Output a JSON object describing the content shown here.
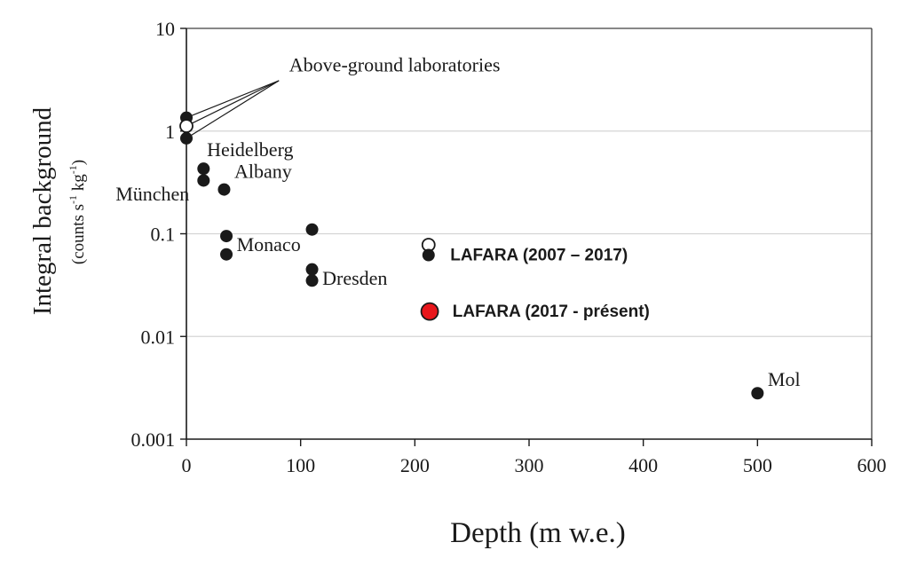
{
  "chart_data": {
    "type": "scatter",
    "xlabel": "Depth (m w.e.)",
    "ylabel": "Integral background",
    "ylabel_units_prefix": "(counts s",
    "ylabel_units_exp1": "-1",
    "ylabel_units_mid": " kg",
    "ylabel_units_exp2": "-1",
    "ylabel_units_suffix": ")",
    "xlim": [
      0,
      600
    ],
    "ylim": [
      0.001,
      10
    ],
    "yscale": "log",
    "grid": "horizontal",
    "xticks": [
      0,
      100,
      200,
      300,
      400,
      500,
      600
    ],
    "xtick_labels": [
      "0",
      "100",
      "200",
      "300",
      "400",
      "500",
      "600"
    ],
    "yticks": [
      0.001,
      0.01,
      0.1,
      1,
      10
    ],
    "ytick_labels": [
      "0.001",
      "0.01",
      "0.1",
      "1",
      "10"
    ],
    "points": [
      {
        "x": 0,
        "y": 1.35,
        "style": "filled"
      },
      {
        "x": 0,
        "y": 1.12,
        "style": "open"
      },
      {
        "x": 0,
        "y": 0.85,
        "style": "filled"
      },
      {
        "x": 15,
        "y": 0.43,
        "style": "filled"
      },
      {
        "x": 15,
        "y": 0.33,
        "style": "filled"
      },
      {
        "x": 33,
        "y": 0.27,
        "style": "filled"
      },
      {
        "x": 35,
        "y": 0.095,
        "style": "filled"
      },
      {
        "x": 35,
        "y": 0.063,
        "style": "filled"
      },
      {
        "x": 110,
        "y": 0.11,
        "style": "filled"
      },
      {
        "x": 110,
        "y": 0.045,
        "style": "filled"
      },
      {
        "x": 110,
        "y": 0.035,
        "style": "filled"
      },
      {
        "x": 212,
        "y": 0.078,
        "style": "open"
      },
      {
        "x": 212,
        "y": 0.062,
        "style": "filled"
      },
      {
        "x": 213,
        "y": 0.0175,
        "style": "red"
      },
      {
        "x": 500,
        "y": 0.0028,
        "style": "filled"
      }
    ],
    "annotations": [
      {
        "text": "Above-ground laboratories",
        "font": "serif",
        "x": 90,
        "y": 3.8
      },
      {
        "text": "Heidelberg",
        "font": "serif",
        "x": 18,
        "y": 0.57
      },
      {
        "text": "Albany",
        "font": "serif",
        "x": 42,
        "y": 0.35
      },
      {
        "text": "München",
        "font": "serif",
        "x": -62,
        "y": 0.21
      },
      {
        "text": "Monaco",
        "font": "serif",
        "x": 44,
        "y": 0.068
      },
      {
        "text": "Dresden",
        "font": "serif",
        "x": 119,
        "y": 0.032
      },
      {
        "text": "LAFARA (2007 – 2017)",
        "font": "sans-bold",
        "x": 231,
        "y": 0.055
      },
      {
        "text": "LAFARA (2017 - présent)",
        "font": "sans-bold",
        "x": 233,
        "y": 0.0155
      },
      {
        "text": "Mol",
        "font": "serif",
        "x": 509,
        "y": 0.0033
      }
    ],
    "pointer_lines": {
      "from": {
        "x": 81,
        "y": 3.1
      },
      "to": [
        {
          "x": 0,
          "y": 1.35
        },
        {
          "x": 0,
          "y": 1.12
        },
        {
          "x": 0,
          "y": 0.85
        }
      ]
    },
    "colors": {
      "axis": "#1a1a1a",
      "grid": "#d4d4d4",
      "marker": "#1a1a1a",
      "red_marker": "#e8161b",
      "text": "#1a1a1a"
    }
  }
}
